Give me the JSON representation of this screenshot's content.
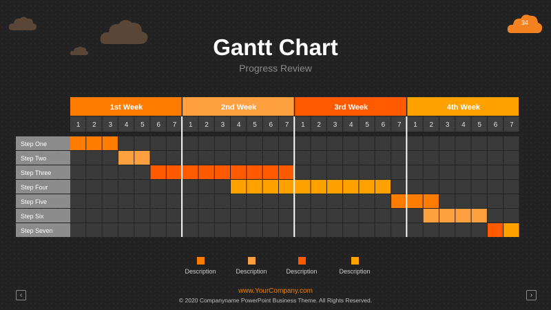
{
  "header": {
    "title": "Gantt Chart",
    "subtitle": "Progress Review",
    "slide_number": "34"
  },
  "gantt": {
    "weeks": [
      {
        "label": "1st Week",
        "color": "#FF7C00"
      },
      {
        "label": "2nd Week",
        "color": "#FFA040"
      },
      {
        "label": "3rd Week",
        "color": "#FF5A00"
      },
      {
        "label": "4th Week",
        "color": "#FFA200"
      }
    ],
    "days_per_week": [
      "1",
      "2",
      "3",
      "4",
      "5",
      "6",
      "7"
    ],
    "tasks": [
      {
        "label": "Step One",
        "start_day": 1,
        "end_day": 3,
        "color": "#FF7C00"
      },
      {
        "label": "Step Two",
        "start_day": 4,
        "end_day": 5,
        "color": "#FFA040"
      },
      {
        "label": "Step Three",
        "start_day": 6,
        "end_day": 14,
        "color": "#FF5A00"
      },
      {
        "label": "Step Four",
        "start_day": 11,
        "end_day": 20,
        "color": "#FFA200"
      },
      {
        "label": "Step Five",
        "start_day": 21,
        "end_day": 23,
        "color": "#FF7C00"
      },
      {
        "label": "Step Six",
        "start_day": 23,
        "end_day": 26,
        "color": "#FFA040"
      },
      {
        "label": "Step Seven",
        "start_day": 27,
        "end_day": 28,
        "color": "#FF5A00",
        "split_color": "#FFA200"
      }
    ]
  },
  "legend": [
    {
      "label": "Description",
      "color": "#FF7C00"
    },
    {
      "label": "Description",
      "color": "#FFA040"
    },
    {
      "label": "Description",
      "color": "#FF5A00"
    },
    {
      "label": "Description",
      "color": "#FFA200"
    }
  ],
  "footer": {
    "url": "www.YourCompany.com",
    "copyright": "© 2020 Companyname  PowerPoint  Business Theme. All Rights Reserved."
  },
  "nav": {
    "prev_icon": "chevron-left-icon",
    "next_icon": "chevron-right-icon"
  }
}
